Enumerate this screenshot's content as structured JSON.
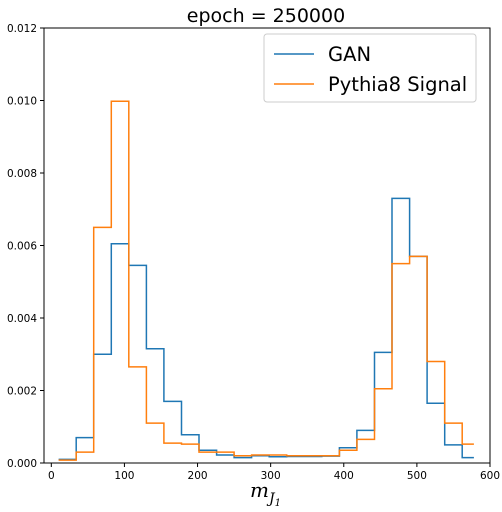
{
  "chart_data": {
    "type": "line",
    "title": "epoch = 250000",
    "xlabel_main": "m",
    "xlabel_sub": "J",
    "xlabel_subsub": "1",
    "ylabel": "",
    "xlim": [
      -10,
      600
    ],
    "ylim": [
      0,
      0.012
    ],
    "xticks": [
      0,
      100,
      200,
      300,
      400,
      500,
      600
    ],
    "yticks": [
      0,
      0.002,
      0.004,
      0.006,
      0.008,
      0.01,
      0.012
    ],
    "ytick_labels": [
      "0.000",
      "0.002",
      "0.004",
      "0.006",
      "0.008",
      "0.010",
      "0.012"
    ],
    "grid": false,
    "legend_position": "top-right",
    "bin_edges": [
      10,
      34,
      58,
      82,
      106,
      130,
      154,
      178,
      202,
      226,
      250,
      274,
      298,
      322,
      346,
      370,
      394,
      418,
      442,
      466,
      490,
      514,
      538,
      562,
      578
    ],
    "series": [
      {
        "name": "GAN",
        "color": "#1f77b4",
        "values": [
          0.0001,
          0.0007,
          0.003,
          0.00605,
          0.00545,
          0.00315,
          0.0017,
          0.00078,
          0.00035,
          0.00022,
          0.00015,
          0.0002,
          0.00017,
          0.00018,
          0.00018,
          0.00019,
          0.00042,
          0.0009,
          0.00305,
          0.0073,
          0.0057,
          0.00165,
          0.0005,
          0.00015
        ]
      },
      {
        "name": "Pythia8 Signal",
        "color": "#ff7f0e",
        "values": [
          8e-05,
          0.0003,
          0.0065,
          0.00998,
          0.00265,
          0.0011,
          0.00055,
          0.00052,
          0.0003,
          0.0003,
          0.0002,
          0.00022,
          0.00022,
          0.0002,
          0.0002,
          0.0002,
          0.00035,
          0.00065,
          0.00205,
          0.0055,
          0.0057,
          0.0028,
          0.0011,
          0.00052
        ]
      }
    ]
  }
}
